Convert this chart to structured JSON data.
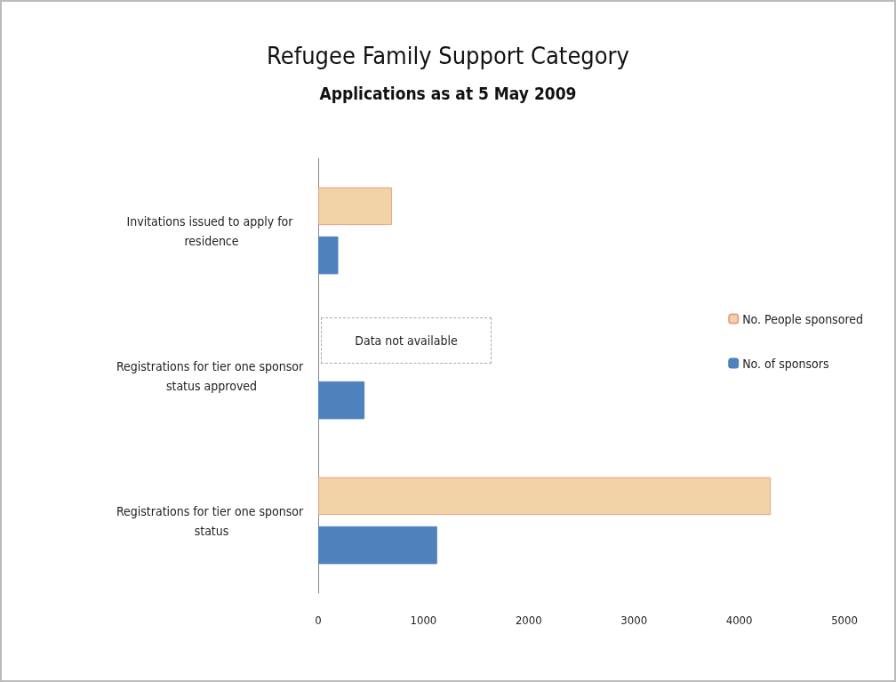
{
  "chart_data": {
    "type": "bar",
    "orientation": "horizontal",
    "title": "Refugee Family Support Category",
    "subtitle": "Applications as at 5 May 2009",
    "categories": [
      "Invitations issued to apply for residence",
      "Registrations for tier one sponsor status approved",
      "Registrations for tier one sponsor status"
    ],
    "series": [
      {
        "name": "No. People sponsored",
        "color": "#f2d3a6",
        "values": [
          700,
          null,
          4300
        ]
      },
      {
        "name": "No. of sponsors",
        "color": "#4f81bd",
        "values": [
          190,
          440,
          1130
        ]
      }
    ],
    "xlim": [
      0,
      5000
    ],
    "xticks": [
      0,
      1000,
      2000,
      3000,
      4000,
      5000
    ],
    "grid": false,
    "legend": "right",
    "annotations": [
      "Data not available"
    ]
  }
}
